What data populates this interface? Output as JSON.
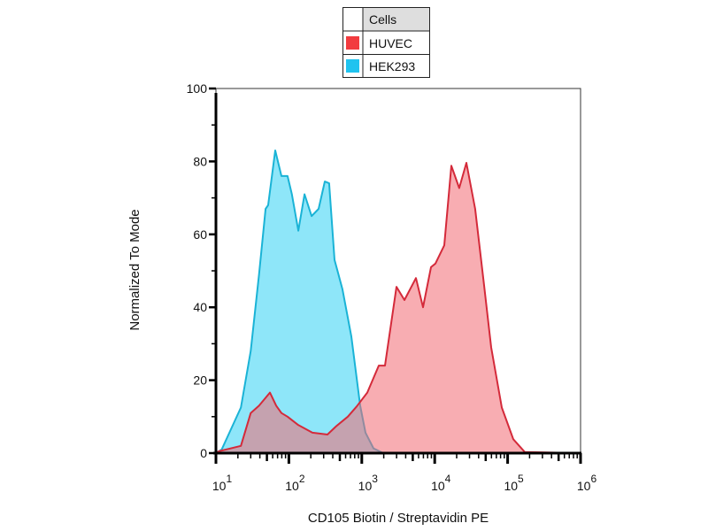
{
  "chart_data": {
    "type": "area",
    "title": "",
    "xlabel": "CD105 Biotin / Streptavidin PE",
    "ylabel": "Normalized To Mode",
    "x_scale": "log",
    "xlim": [
      10,
      1000000
    ],
    "ylim": [
      0,
      100
    ],
    "x_ticks": [
      10,
      100,
      1000,
      10000,
      100000,
      1000000
    ],
    "x_tick_labels": [
      {
        "base": "10",
        "exp": "1"
      },
      {
        "base": "10",
        "exp": "2"
      },
      {
        "base": "10",
        "exp": "3"
      },
      {
        "base": "10",
        "exp": "4"
      },
      {
        "base": "10",
        "exp": "5"
      },
      {
        "base": "10",
        "exp": "6"
      }
    ],
    "y_ticks": [
      0,
      20,
      40,
      60,
      80,
      100
    ],
    "y_tick_labels": [
      "0",
      "20",
      "40",
      "60",
      "80",
      "100"
    ],
    "grid": false,
    "legend": {
      "placement": "top-center",
      "header": "Cells",
      "entries": [
        "HUVEC",
        "HEK293"
      ]
    },
    "series": [
      {
        "name": "HEK293",
        "color": "#1ab3d6",
        "fill": "#8ee6f9",
        "x": [
          10,
          12,
          22,
          30,
          39,
          48,
          52,
          65,
          79,
          96,
          110,
          135,
          164,
          205,
          256,
          311,
          357,
          423,
          543,
          719,
          951,
          1125,
          1445,
          1967,
          1000000
        ],
        "y": [
          0,
          1,
          12.5,
          28,
          49,
          67,
          68,
          83,
          76,
          76,
          71,
          61,
          71,
          65,
          67,
          74.5,
          74,
          53,
          45,
          32,
          13,
          5.6,
          1.3,
          0,
          0
        ]
      },
      {
        "name": "HUVEC",
        "color": "#d42a3a",
        "fill": "#f26a72",
        "x": [
          10,
          11,
          22,
          30,
          39,
          55,
          67,
          79,
          96,
          135,
          210,
          338,
          447,
          643,
          851,
          1189,
          1710,
          2080,
          2990,
          3850,
          5530,
          6920,
          8890,
          10230,
          13530,
          16900,
          21700,
          27200,
          35900,
          47600,
          59500,
          83200,
          119700,
          171900,
          1000000
        ],
        "y": [
          0,
          0.5,
          2,
          11,
          13,
          16.6,
          13,
          11,
          10,
          7.7,
          5.6,
          5.1,
          7.4,
          10,
          12.8,
          16.6,
          24,
          24,
          45.6,
          42,
          48,
          40,
          51,
          52,
          57,
          78.8,
          72.7,
          79.6,
          67,
          46,
          29,
          12.5,
          3.8,
          0.3,
          0
        ]
      }
    ]
  }
}
